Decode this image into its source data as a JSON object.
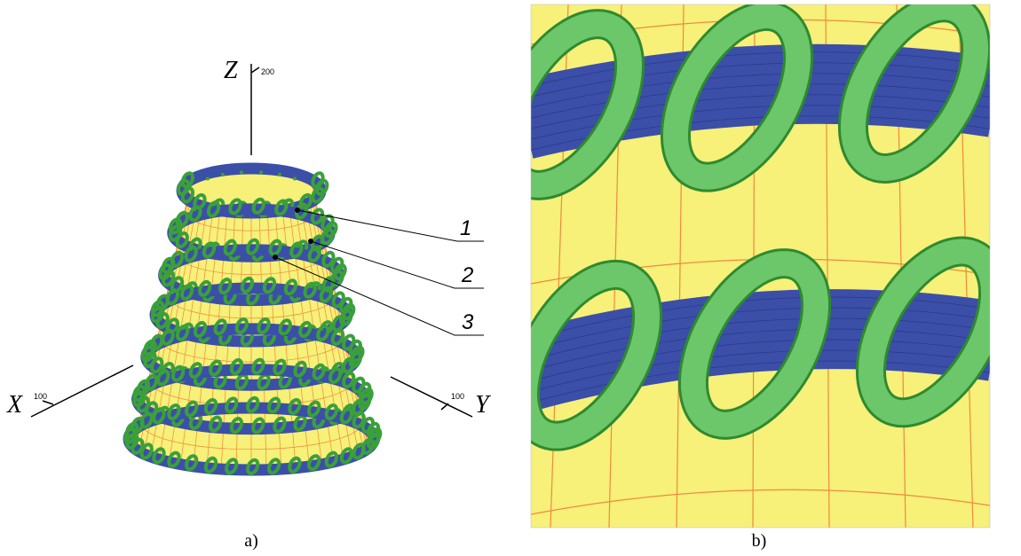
{
  "left_panel": {
    "axes": {
      "z_label": "Z",
      "z_tick": "200",
      "x_label": "X",
      "x_tick": "100",
      "y_label": "Y",
      "y_tick": "100"
    },
    "callouts": [
      "1",
      "2",
      "3"
    ],
    "caption": "a)"
  },
  "right_panel": {
    "caption": "b)"
  }
}
